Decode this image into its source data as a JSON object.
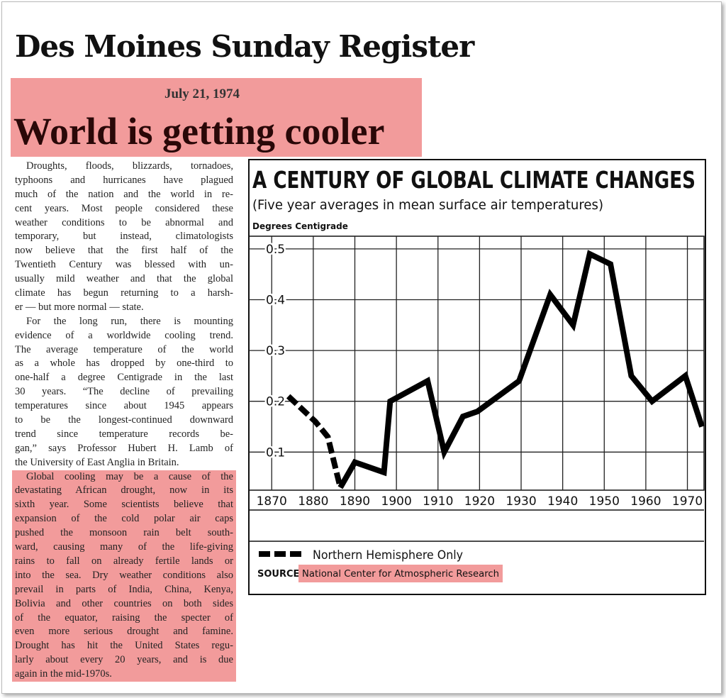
{
  "header": {
    "masthead": "Des Moines Sunday Register",
    "date": "July 21, 1974",
    "headline": "World is getting cooler"
  },
  "article": {
    "paragraphs": [
      [
        "Droughts, floods, blizzards, tornadoes,",
        "typhoons and hurricanes have plagued",
        "much of the nation and the world in re-",
        "cent years. Most people considered these",
        "weather conditions to be abnormal and",
        "temporary, but instead, climatologists",
        "now believe that the first half of the",
        "Twentieth Century was blessed with un-",
        "usually mild weather and that the global",
        "climate has begun returning to a harsh-",
        "er — but more normal — state."
      ],
      [
        "For the long run, there is mounting",
        "evidence of a worldwide cooling trend.",
        "The average temperature of the world",
        "as a whole has dropped by one-third to",
        "one-half a degree Centigrade in the last",
        "30 years. “The decline of prevailing",
        "temperatures since about 1945 appears",
        "to be the longest-continued downward",
        "trend since temperature records be-",
        "gan,” says Professor Hubert H. Lamb of",
        "the University of East Anglia in Britain."
      ],
      [
        "Global cooling may be a cause of the",
        "devastating African drought, now in its",
        "sixth year. Some scientists believe that",
        "expansion of the cold polar air caps",
        "pushed the monsoon rain belt south-",
        "ward, causing many of the life-giving",
        "rains to fall on already fertile lands or",
        "into the sea. Dry weather conditions also",
        "prevail in parts of India, China, Kenya,",
        "Bolivia and other countries on both sides",
        "of the equator, raising the specter of",
        "even more serious drought and famine.",
        "Drought has hit the United States regu-",
        "larly about every 20 years, and is due",
        "again in the mid-1970s."
      ]
    ]
  },
  "chart_data": {
    "type": "line",
    "title": "A CENTURY OF GLOBAL CLIMATE CHANGES",
    "subtitle": "(Five year averages in mean surface air temperatures)",
    "y_label": "Degrees Centigrade",
    "x": [
      1874,
      1880.5,
      1883.5,
      1886.5,
      1890,
      1897,
      1898.5,
      1907.5,
      1911.5,
      1916,
      1919.5,
      1929.5,
      1937,
      1942.5,
      1946.5,
      1951.5,
      1956.5,
      1961.5,
      1969.5,
      1973.5
    ],
    "series": [
      {
        "name": "Northern Hemisphere Only",
        "color": "#000000",
        "dashed": true,
        "values": [
          0.21,
          0.16,
          0.13,
          0.03,
          null,
          null,
          null,
          null,
          null,
          null,
          null,
          null,
          null,
          null,
          null,
          null,
          null,
          null,
          null,
          null
        ]
      },
      {
        "color": "#000000",
        "dashed": false,
        "values": [
          null,
          null,
          null,
          0.03,
          0.08,
          0.06,
          0.2,
          0.24,
          0.1,
          0.17,
          0.18,
          0.24,
          0.41,
          0.35,
          0.49,
          0.47,
          0.25,
          0.2,
          0.25,
          0.15
        ]
      }
    ],
    "xlim": [
      1864.5,
      1974
    ],
    "ylim": [
      0.025,
      0.525
    ],
    "xticks": [
      1870,
      1880,
      1890,
      1900,
      1910,
      1920,
      1930,
      1940,
      1950,
      1960,
      1970
    ],
    "yticks": [
      0.1,
      0.2,
      0.3,
      0.4,
      0.5
    ],
    "grid": true,
    "source_label": "SOURCE:",
    "source": "National Center for Atmospheric Research"
  }
}
